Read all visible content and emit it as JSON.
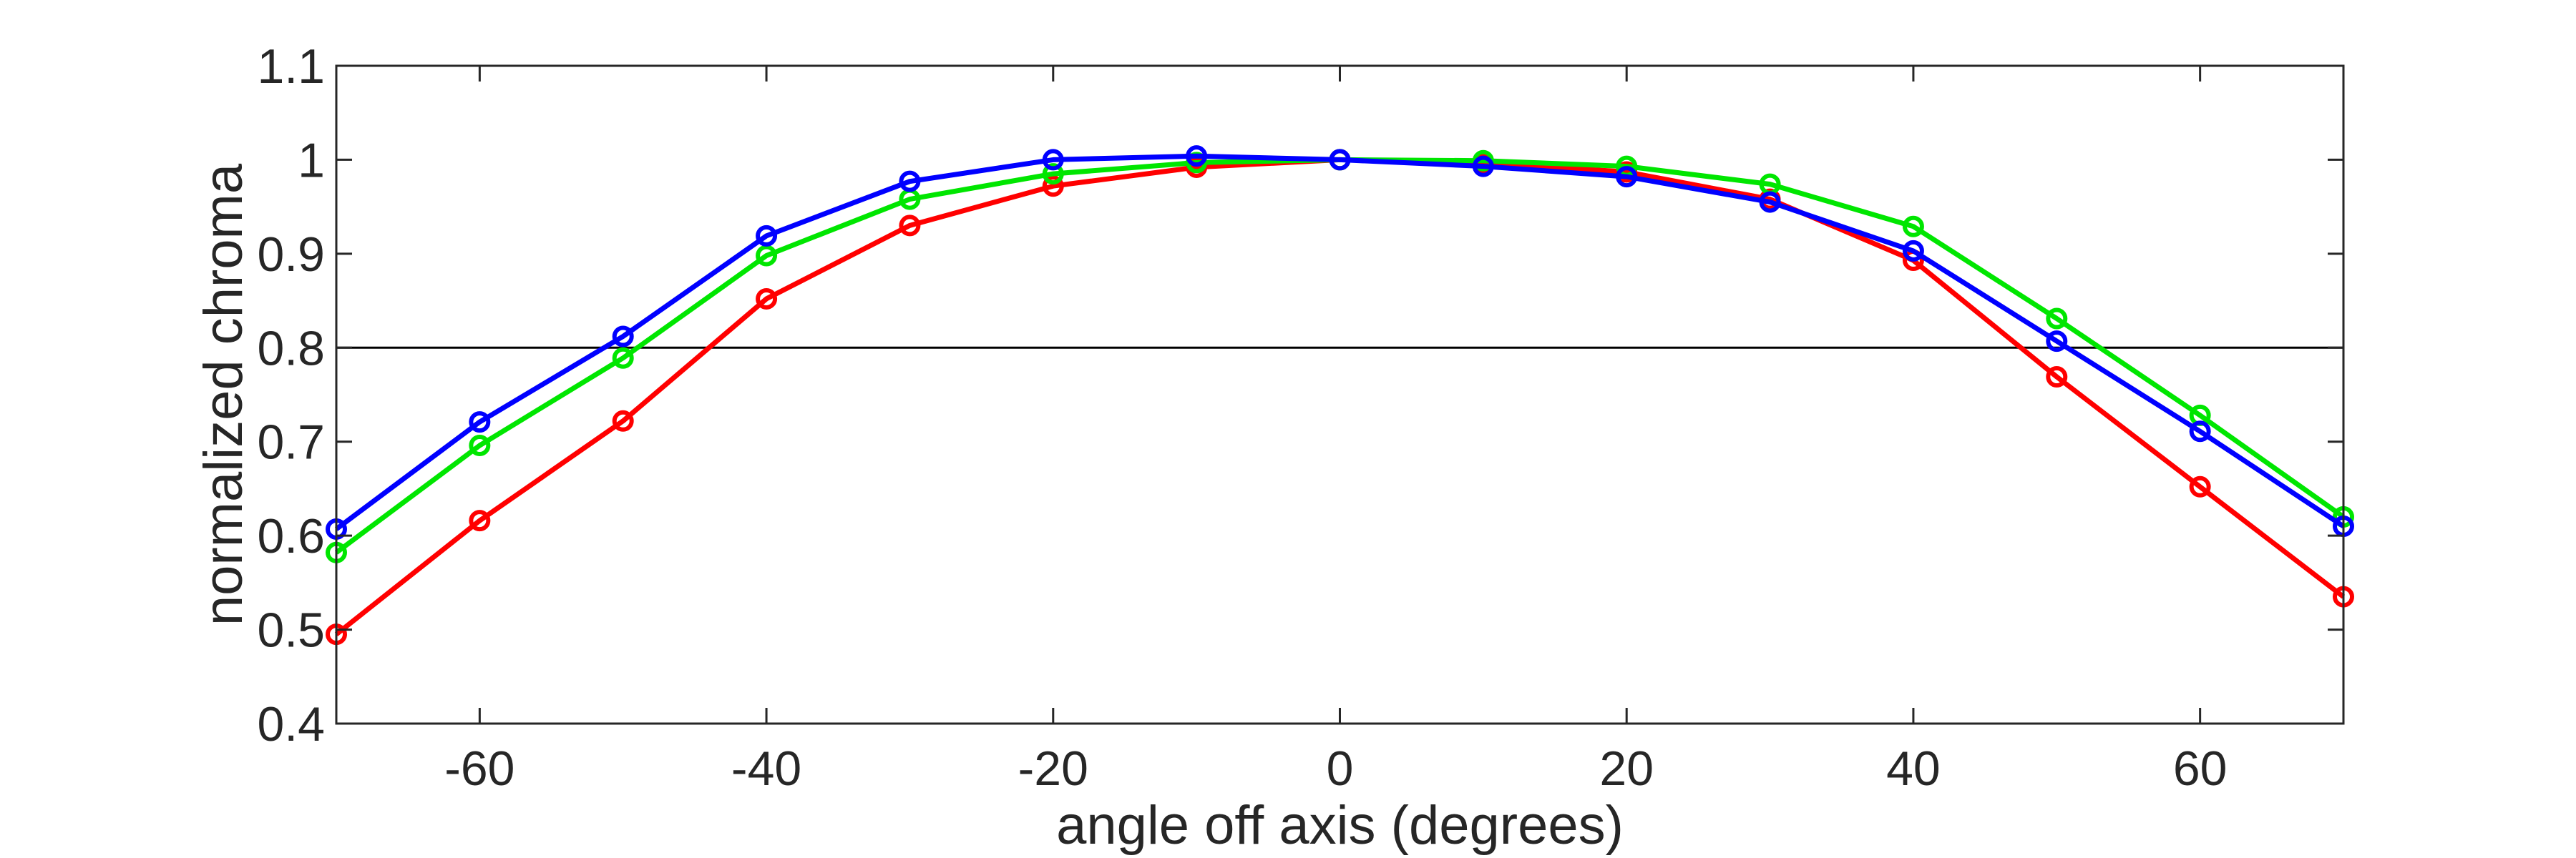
{
  "chart_data": {
    "type": "line",
    "title": "",
    "xlabel": "angle off axis (degrees)",
    "ylabel": "normalized chroma",
    "xlim": [
      -70,
      70
    ],
    "ylim": [
      0.4,
      1.1
    ],
    "xticks": [
      -60,
      -40,
      -20,
      0,
      20,
      40,
      60
    ],
    "xtick_labels": [
      "-60",
      "-40",
      "-20",
      "0",
      "20",
      "40",
      "60"
    ],
    "yticks": [
      0.4,
      0.5,
      0.6,
      0.7,
      0.8,
      0.9,
      1,
      1.1
    ],
    "ytick_labels": [
      "0.4",
      "0.5",
      "0.6",
      "0.7",
      "0.8",
      "0.9",
      "1",
      "1.1"
    ],
    "grid": false,
    "legend": "none",
    "reference_line": {
      "y": 0.8,
      "color": "#000000"
    },
    "x": [
      -70,
      -60,
      -50,
      -40,
      -30,
      -20,
      -10,
      0,
      10,
      20,
      30,
      40,
      50,
      60,
      70
    ],
    "series": [
      {
        "color": "#ff0000",
        "values": [
          0.495,
          0.616,
          0.722,
          0.852,
          0.93,
          0.972,
          0.992,
          1.0,
          0.997,
          0.987,
          0.958,
          0.893,
          0.769,
          0.652,
          0.535
        ]
      },
      {
        "color": "#00e600",
        "values": [
          0.582,
          0.696,
          0.789,
          0.898,
          0.958,
          0.985,
          0.997,
          1.0,
          0.999,
          0.993,
          0.974,
          0.929,
          0.831,
          0.728,
          0.62
        ]
      },
      {
        "color": "#0000ff",
        "values": [
          0.607,
          0.721,
          0.812,
          0.919,
          0.977,
          1.0,
          1.004,
          1.0,
          0.993,
          0.982,
          0.955,
          0.903,
          0.807,
          0.711,
          0.61
        ]
      }
    ]
  }
}
